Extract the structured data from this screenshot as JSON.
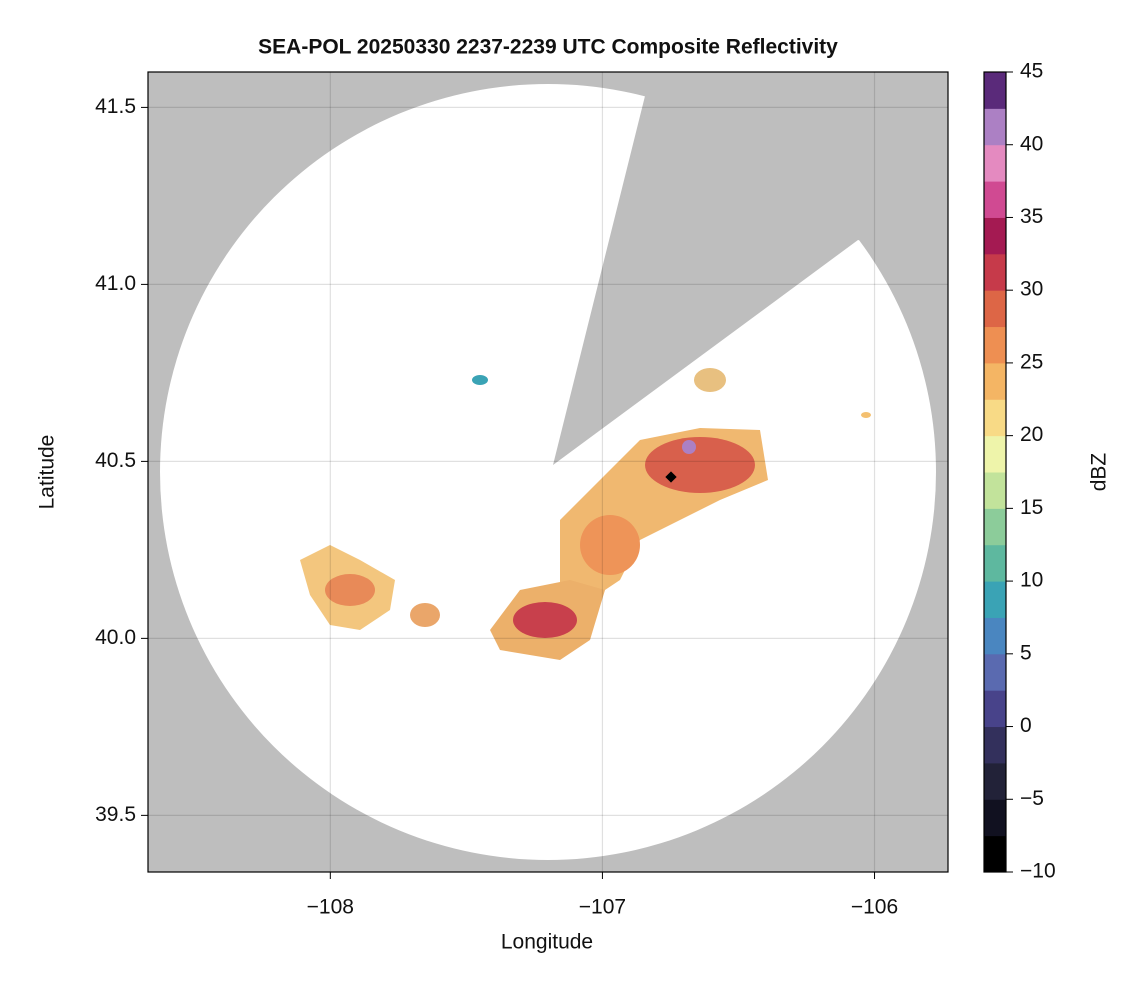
{
  "chart_data": {
    "type": "radar-map",
    "title": "SEA-POL 20250330 2237-2239 UTC Composite Reflectivity",
    "x_label": "Longitude",
    "y_label": "Latitude",
    "xlim": [
      -108.67,
      -105.73
    ],
    "xticks": [
      {
        "value": -108,
        "label": "−108"
      },
      {
        "value": -107,
        "label": "−107"
      },
      {
        "value": -106,
        "label": "−106"
      }
    ],
    "ylim": [
      39.34,
      41.6
    ],
    "yticks": [
      {
        "value": 39.5,
        "label": "39.5"
      },
      {
        "value": 40,
        "label": "40.0"
      },
      40.5,
      {
        "value": 41,
        "label": "41.0"
      },
      41.5
    ],
    "grid": true,
    "colorbar": {
      "label": "dBZ",
      "lim": [
        -10,
        45
      ],
      "ticks": [
        {
          "value": -10,
          "label": "−10"
        },
        {
          "value": -5,
          "label": "−5"
        },
        0,
        5,
        10,
        15,
        20,
        25,
        30,
        35,
        40,
        45
      ],
      "colormap": [
        "#000000",
        "#111120",
        "#222238",
        "#33305c",
        "#48438a",
        "#5a6ab0",
        "#4a86c0",
        "#3aa3b5",
        "#5eb89f",
        "#8ccc9a",
        "#c2e39b",
        "#eef4aa",
        "#f8da86",
        "#f4b564",
        "#ee8f52",
        "#dd6646",
        "#c63a4a",
        "#a41a52",
        "#d04a92",
        "#e48ac0",
        "#ac80c4",
        "#5a2a7a"
      ]
    }
  }
}
